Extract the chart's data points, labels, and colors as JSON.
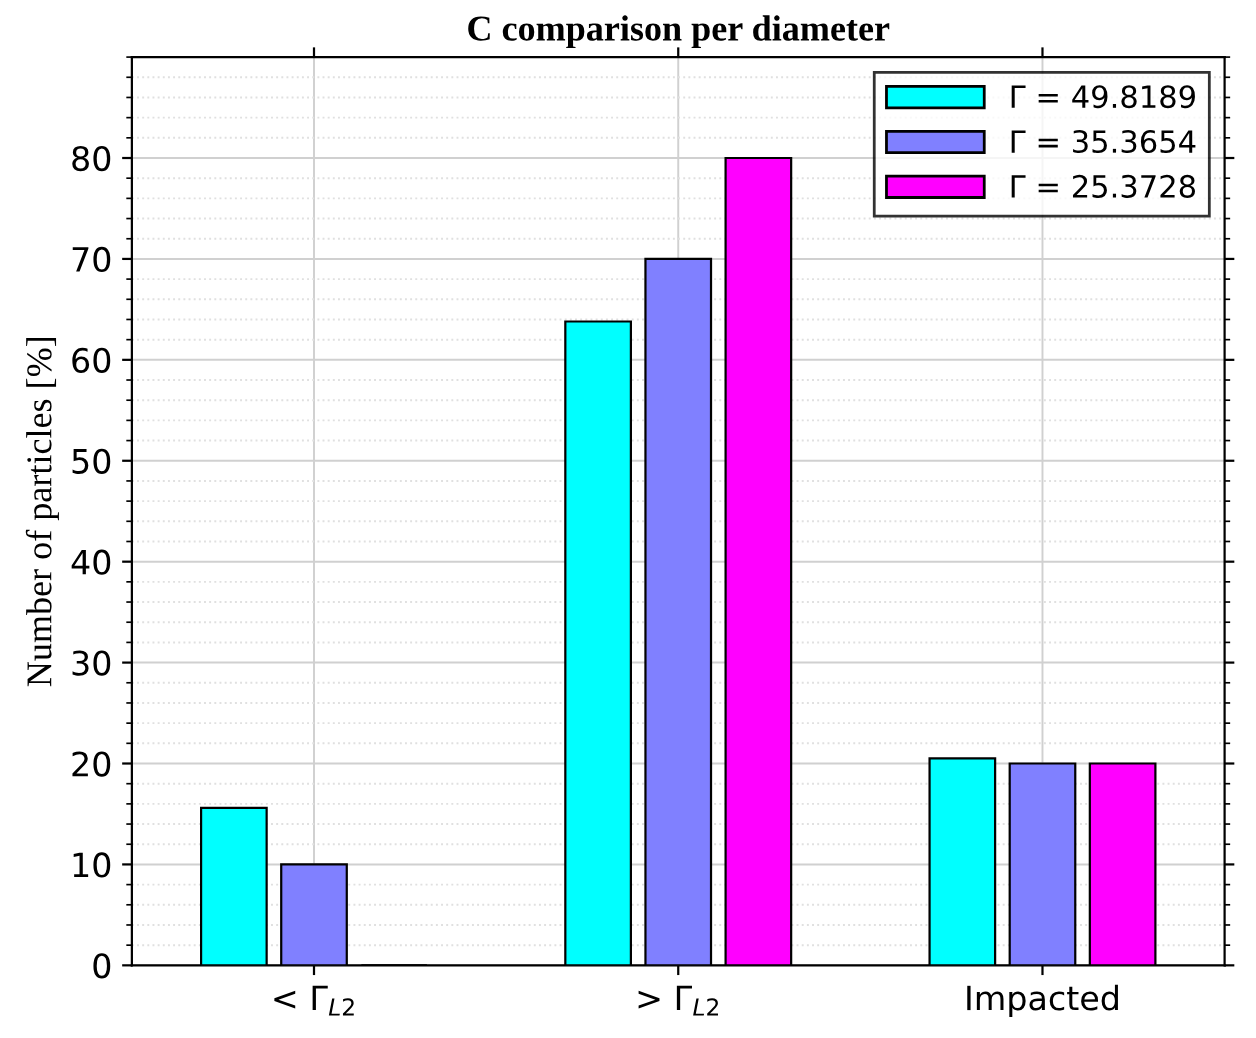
{
  "chart_data": {
    "type": "bar",
    "title": "C comparison per diameter",
    "ylabel": "Number of particles [%]",
    "categories": [
      "< Γ$_{L2}$",
      "> Γ$_{L2}$",
      "Impacted"
    ],
    "series": [
      {
        "name": "Γ = 49.8189",
        "color": "#00ffff",
        "values": [
          15.6,
          63.8,
          20.5
        ]
      },
      {
        "name": "Γ = 35.3654",
        "color": "#8080ff",
        "values": [
          10,
          70,
          20
        ]
      },
      {
        "name": "Γ = 25.3728",
        "color": "#ff00ff",
        "values": [
          0,
          80,
          20
        ]
      }
    ],
    "ylim": [
      0,
      90
    ],
    "yticks": [
      0,
      10,
      20,
      30,
      40,
      50,
      60,
      70,
      80
    ],
    "grid": true,
    "legend": "top right"
  }
}
